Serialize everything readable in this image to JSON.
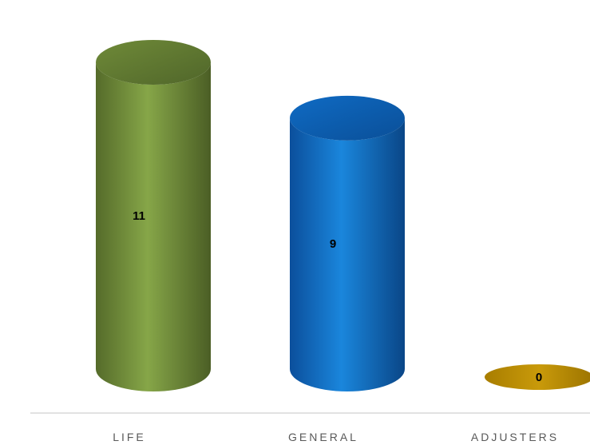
{
  "chart_data": {
    "type": "bar",
    "style": "3d-cylinder",
    "categories": [
      "LIFE",
      "GENERAL",
      "ADJUSTERS"
    ],
    "values": [
      11,
      9,
      0
    ],
    "data_labels": [
      "11",
      "9",
      "0"
    ],
    "colors": [
      "#76923c",
      "#0070c0",
      "#c09000"
    ],
    "title": "",
    "xlabel": "",
    "ylabel": "",
    "ylim": [
      0,
      11
    ],
    "grid": false,
    "legend": "none"
  }
}
